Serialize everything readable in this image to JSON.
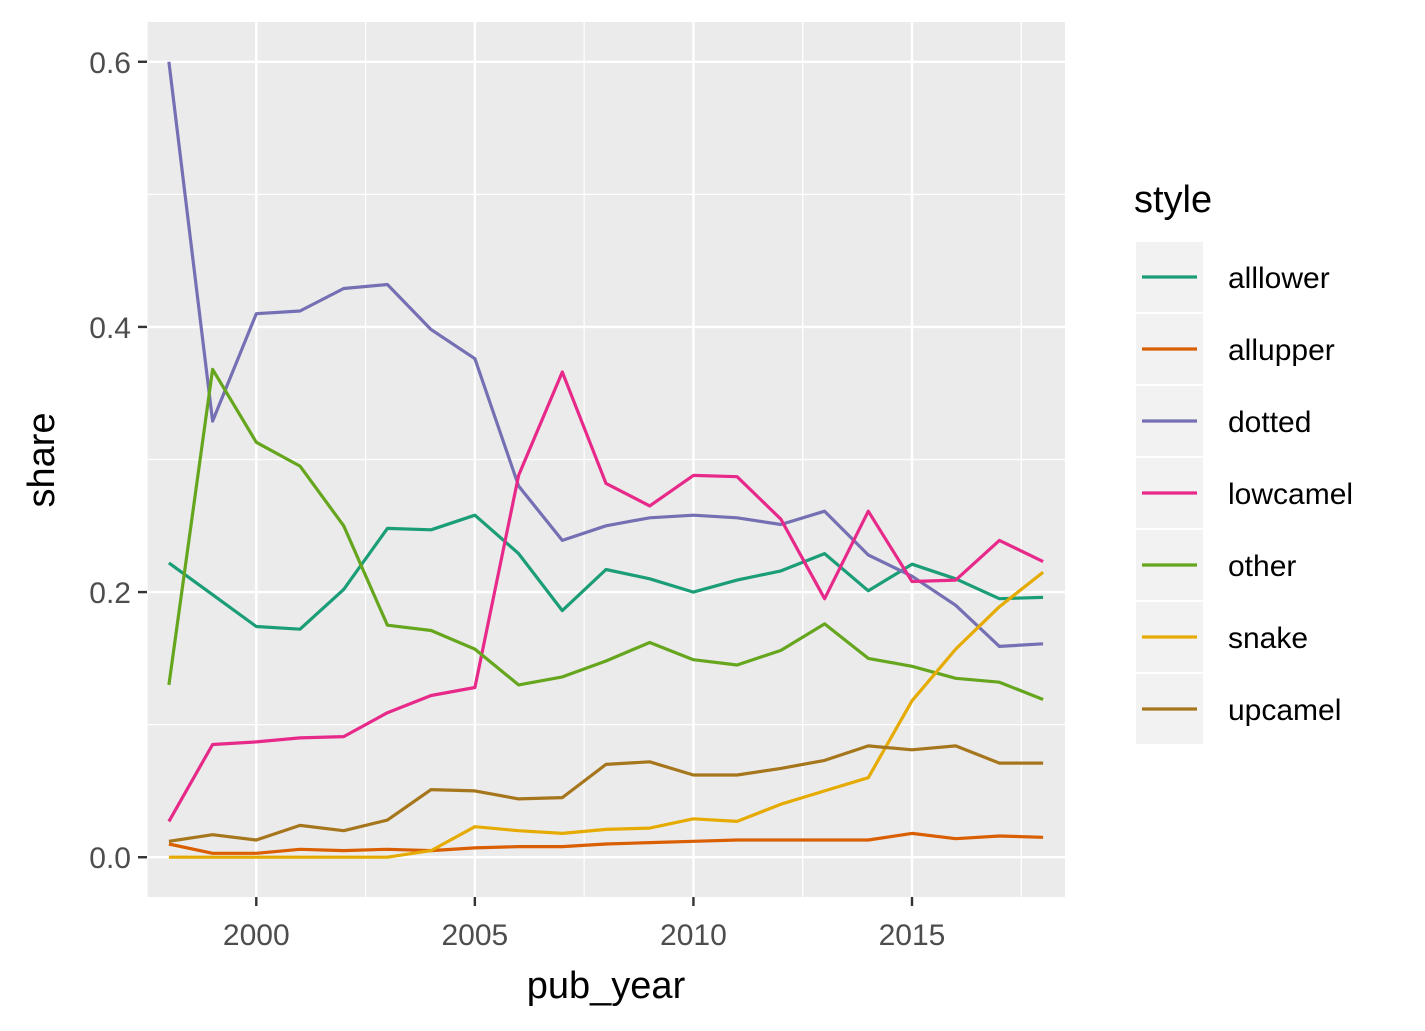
{
  "chart_data": {
    "type": "line",
    "xlabel": "pub_year",
    "ylabel": "share",
    "xlim": [
      1997.5,
      2018.5
    ],
    "ylim": [
      -0.03,
      0.63
    ],
    "x_ticks": [
      2000,
      2005,
      2010,
      2015
    ],
    "x_tick_labels": [
      "2000",
      "2005",
      "2010",
      "2015"
    ],
    "y_ticks": [
      0.0,
      0.2,
      0.4,
      0.6
    ],
    "y_tick_labels": [
      "0.0",
      "0.2",
      "0.4",
      "0.6"
    ],
    "grid": true,
    "legend": {
      "title": "style",
      "position": "right"
    },
    "x": [
      1998,
      1999,
      2000,
      2001,
      2002,
      2003,
      2004,
      2005,
      2006,
      2007,
      2008,
      2009,
      2010,
      2011,
      2012,
      2013,
      2014,
      2015,
      2016,
      2017,
      2018
    ],
    "series": [
      {
        "name": "alllower",
        "color": "#1b9e77",
        "values": [
          0.222,
          0.198,
          0.174,
          0.172,
          0.202,
          0.248,
          0.247,
          0.258,
          0.229,
          0.186,
          0.217,
          0.21,
          0.2,
          0.209,
          0.216,
          0.229,
          0.201,
          0.221,
          0.21,
          0.195,
          0.196
        ]
      },
      {
        "name": "allupper",
        "color": "#d95f02",
        "values": [
          0.01,
          0.003,
          0.003,
          0.006,
          0.005,
          0.006,
          0.005,
          0.007,
          0.008,
          0.008,
          0.01,
          0.011,
          0.012,
          0.013,
          0.013,
          0.013,
          0.013,
          0.018,
          0.014,
          0.016,
          0.015
        ]
      },
      {
        "name": "dotted",
        "color": "#7570b3",
        "values": [
          0.6,
          0.329,
          0.41,
          0.412,
          0.429,
          0.432,
          0.398,
          0.376,
          0.28,
          0.239,
          0.25,
          0.256,
          0.258,
          0.256,
          0.251,
          0.261,
          0.228,
          0.212,
          0.19,
          0.159,
          0.161
        ]
      },
      {
        "name": "lowcamel",
        "color": "#e7298a",
        "values": [
          0.027,
          0.085,
          0.087,
          0.09,
          0.091,
          0.109,
          0.122,
          0.128,
          0.288,
          0.366,
          0.282,
          0.265,
          0.288,
          0.287,
          0.255,
          0.195,
          0.261,
          0.208,
          0.209,
          0.239,
          0.223
        ]
      },
      {
        "name": "other",
        "color": "#66a61e",
        "values": [
          0.13,
          0.368,
          0.313,
          0.295,
          0.25,
          0.175,
          0.171,
          0.157,
          0.13,
          0.136,
          0.148,
          0.162,
          0.149,
          0.145,
          0.156,
          0.176,
          0.15,
          0.144,
          0.135,
          0.132,
          0.119
        ]
      },
      {
        "name": "snake",
        "color": "#e6ab02",
        "values": [
          0.0,
          0.0,
          0.0,
          0.0,
          0.0,
          0.0,
          0.005,
          0.023,
          0.02,
          0.018,
          0.021,
          0.022,
          0.029,
          0.027,
          0.04,
          0.05,
          0.06,
          0.118,
          0.157,
          0.189,
          0.215
        ]
      },
      {
        "name": "upcamel",
        "color": "#a6761d",
        "values": [
          0.012,
          0.017,
          0.013,
          0.024,
          0.02,
          0.028,
          0.051,
          0.05,
          0.044,
          0.045,
          0.07,
          0.072,
          0.062,
          0.062,
          0.067,
          0.073,
          0.084,
          0.081,
          0.084,
          0.071,
          0.071
        ]
      }
    ]
  }
}
